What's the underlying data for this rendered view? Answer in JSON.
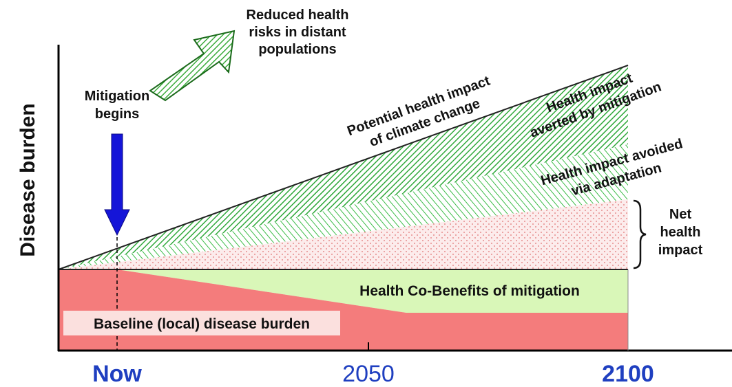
{
  "y_axis_label": "Disease burden",
  "x_labels": [
    "Now",
    "2050",
    "2100"
  ],
  "annotations": {
    "reduced_risks": [
      "Reduced health",
      "risks in distant",
      "populations"
    ],
    "mitigation_begins": [
      "Mitigation",
      "begins"
    ],
    "potential_impact": [
      "Potential health impact",
      "of climate  change"
    ],
    "averted_by_mitigation": [
      "Health impact",
      "averted by mitigation"
    ],
    "avoided_via_adaptation": [
      "Health impact avoided",
      "via adaptation"
    ],
    "net_impact": [
      "Net",
      "health",
      "impact"
    ],
    "co_benefits": "Health Co-Benefits of mitigation",
    "baseline": "Baseline (local) disease burden"
  }
}
